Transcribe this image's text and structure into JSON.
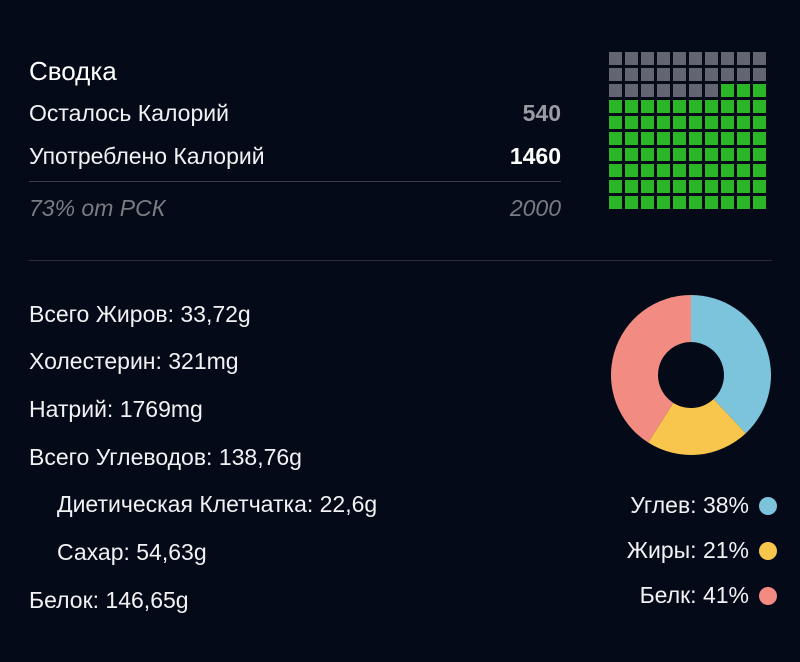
{
  "summary": {
    "title": "Сводка",
    "remaining_label": "Осталось Калорий",
    "remaining_value": "540",
    "consumed_label": "Употреблено Калорий",
    "consumed_value": "1460",
    "rdi_label": "73% от РСК",
    "rdi_value": "2000"
  },
  "waffle": {
    "total_cells": 100,
    "filled_cells": 73,
    "filled_color": "#2db52a",
    "empty_color": "#636670"
  },
  "nutrients": {
    "fat": "Всего Жиров: 33,72g",
    "cholesterol": "Холестерин: 321mg",
    "sodium": "Натрий: 1769mg",
    "carbs": "Всего Углеводов: 138,76g",
    "fiber": "Диетическая Клетчатка: 22,6g",
    "sugar": "Сахар: 54,63g",
    "protein": "Белок: 146,65g"
  },
  "chart_data": {
    "type": "pie",
    "categories": [
      "Углев",
      "Жиры",
      "Белк"
    ],
    "values": [
      38,
      21,
      41
    ],
    "colors": [
      "#7cc3dc",
      "#f8c64c",
      "#f28b82"
    ],
    "legend": [
      "Углев: 38%",
      "Жиры: 21%",
      "Белк: 41%"
    ]
  }
}
